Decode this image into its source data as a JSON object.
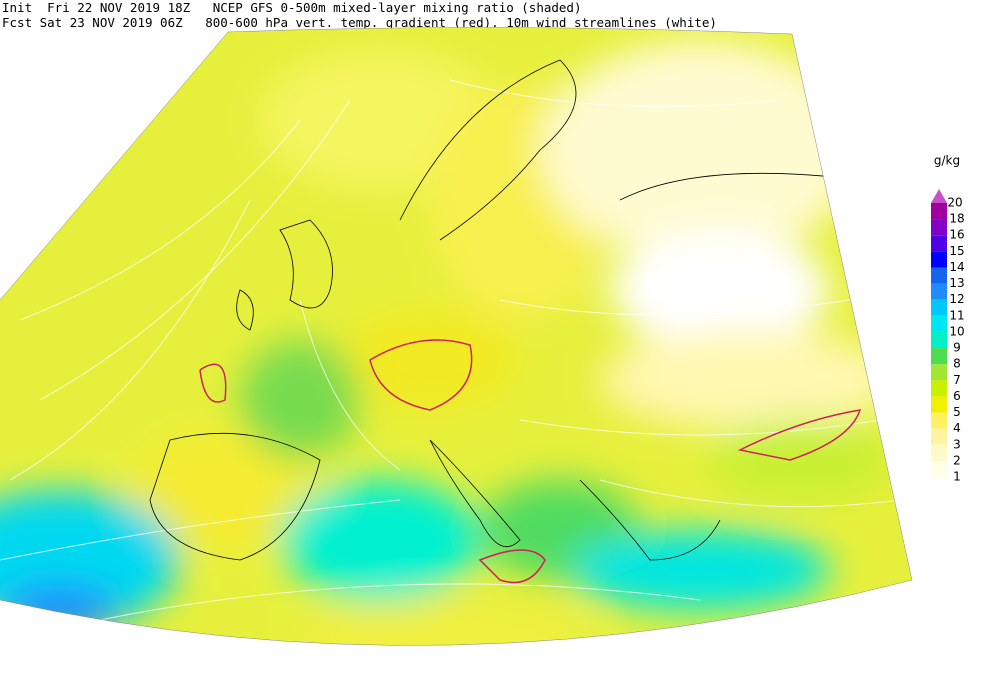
{
  "header": {
    "line1": "Init  Fri 22 NOV 2019 18Z   NCEP GFS 0-500m mixed-layer mixing ratio (shaded)",
    "line2": "Fcst Sat 23 NOV 2019 06Z   800-600 hPa vert. temp. gradient (red). 10m wind streamlines (white)"
  },
  "legend": {
    "unit": "g/kg",
    "levels": [
      1,
      2,
      3,
      4,
      5,
      6,
      7,
      8,
      9,
      10,
      11,
      12,
      13,
      14,
      15,
      16,
      18,
      20
    ],
    "colors": [
      "#ffffe6",
      "#fffac8",
      "#fff5a0",
      "#fff064",
      "#f0f000",
      "#c8f000",
      "#a0e632",
      "#50dc50",
      "#00f0c8",
      "#00e6f0",
      "#00c8ff",
      "#1e8cff",
      "#1464f0",
      "#0000ff",
      "#5000e6",
      "#8200c8",
      "#a000a0",
      "#c850c8"
    ]
  }
}
